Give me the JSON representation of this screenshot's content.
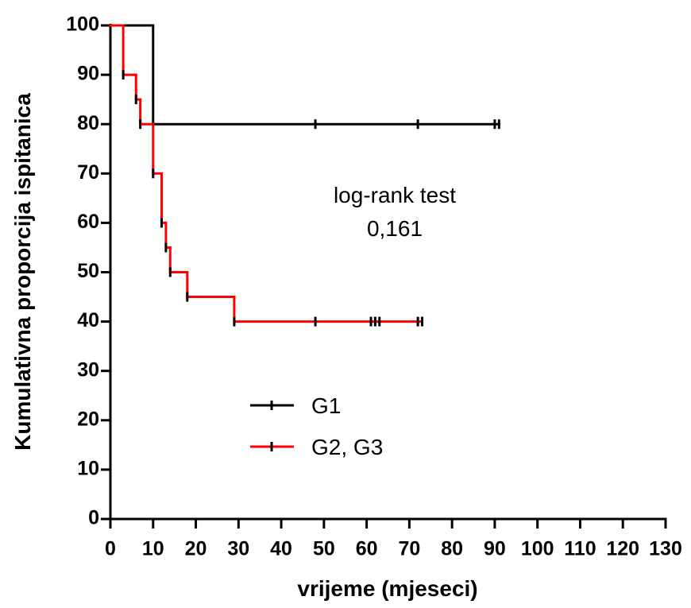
{
  "chart_data": {
    "type": "survival-step",
    "xlabel": "vrijeme (mjeseci)",
    "ylabel": "Kumulativna proporcija ispitanica",
    "xlim": [
      0,
      130
    ],
    "xticks": [
      0,
      10,
      20,
      30,
      40,
      50,
      60,
      70,
      80,
      90,
      100,
      110,
      120,
      130
    ],
    "ylim": [
      0,
      100
    ],
    "yticks": [
      0,
      10,
      20,
      30,
      40,
      50,
      60,
      70,
      80,
      90,
      100
    ],
    "annotations": [
      "log-rank test",
      "0,161"
    ],
    "series": [
      {
        "name": "G1",
        "color": "#000000",
        "x": [
          0,
          10,
          91
        ],
        "values": [
          100,
          80,
          80
        ],
        "censor_x": [
          48,
          72,
          90,
          91
        ],
        "censor_values": [
          80,
          80,
          80,
          80
        ]
      },
      {
        "name": "G2, G3",
        "color": "#ff0000",
        "x": [
          0,
          3,
          6,
          7,
          10,
          12,
          13,
          14,
          18,
          29,
          73
        ],
        "values": [
          100,
          90,
          85,
          80,
          70,
          60,
          55,
          50,
          45,
          40,
          40
        ],
        "censor_x": [
          3,
          6,
          7,
          10,
          12,
          13,
          14,
          18,
          29,
          48,
          61,
          62,
          63,
          72,
          73
        ],
        "censor_values": [
          90,
          85,
          80,
          70,
          60,
          55,
          50,
          45,
          40,
          40,
          40,
          40,
          40,
          40,
          40
        ]
      }
    ]
  }
}
